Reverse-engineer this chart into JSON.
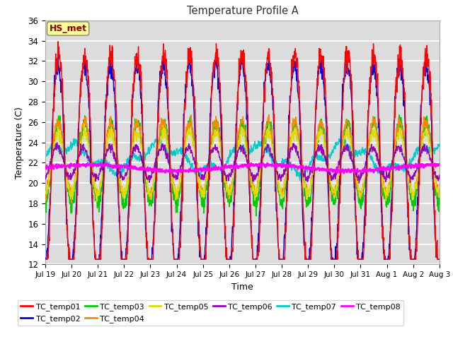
{
  "title": "Temperature Profile A",
  "xlabel": "Time",
  "ylabel": "Temperature (C)",
  "ylim": [
    12,
    36
  ],
  "yticks": [
    12,
    14,
    16,
    18,
    20,
    22,
    24,
    26,
    28,
    30,
    32,
    34,
    36
  ],
  "bg_color": "#dcdcdc",
  "annotation_text": "HS_met",
  "annotation_color": "#8b0000",
  "annotation_bg": "#ffff99",
  "series_colors": {
    "TC_temp01": "#ff0000",
    "TC_temp02": "#0000ee",
    "TC_temp03": "#00cc00",
    "TC_temp04": "#ff8800",
    "TC_temp05": "#dddd00",
    "TC_temp06": "#9900bb",
    "TC_temp07": "#00cccc",
    "TC_temp08": "#ff00ff"
  },
  "x_tick_labels": [
    "Jul 19",
    "Jul 20",
    "Jul 21",
    "Jul 22",
    "Jul 23",
    "Jul 24",
    "Jul 25",
    "Jul 26",
    "Jul 27",
    "Jul 28",
    "Jul 29",
    "Jul 30",
    "Jul 31",
    "Aug 1",
    "Aug 2",
    "Aug 3"
  ],
  "n_points": 1440,
  "days": 15
}
